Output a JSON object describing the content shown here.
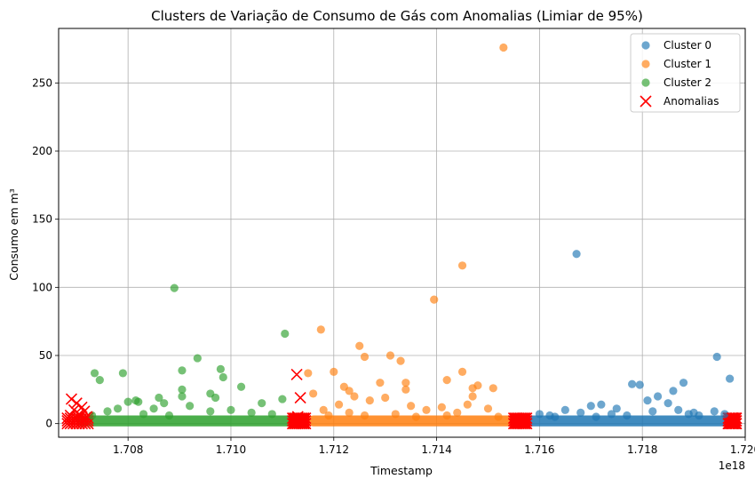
{
  "chart_data": {
    "type": "scatter",
    "title": "Clusters de Variação de Consumo de Gás com Anomalias (Limiar de 95%)",
    "xlabel": "Timestamp",
    "ylabel": "Consumo em m³",
    "x_offset_label": "1e18",
    "xlim": [
      1.70665,
      1.72
    ],
    "ylim": [
      -10,
      290
    ],
    "x_ticks": [
      1.708,
      1.71,
      1.712,
      1.714,
      1.716,
      1.718,
      1.72
    ],
    "x_tick_labels": [
      "1.708",
      "1.710",
      "1.712",
      "1.714",
      "1.716",
      "1.718",
      "1.720"
    ],
    "y_ticks": [
      0,
      50,
      100,
      150,
      200,
      250
    ],
    "y_tick_labels": [
      "0",
      "50",
      "100",
      "150",
      "200",
      "250"
    ],
    "grid": true,
    "legend_position": "top-right",
    "series": [
      {
        "name": "Cluster 0",
        "color": "#1f77b4",
        "marker": "circle",
        "band": [
          1.7157,
          1.7198
        ],
        "points": [
          [
            1.71672,
            124.5
          ],
          [
            1.71945,
            49
          ],
          [
            1.7197,
            33
          ],
          [
            1.71795,
            28.5
          ],
          [
            1.7178,
            29
          ],
          [
            1.7188,
            30
          ],
          [
            1.7186,
            24
          ],
          [
            1.7183,
            20
          ],
          [
            1.7181,
            17
          ],
          [
            1.7185,
            15
          ],
          [
            1.717,
            13
          ],
          [
            1.7172,
            14
          ],
          [
            1.7165,
            10
          ],
          [
            1.7175,
            11
          ],
          [
            1.719,
            8
          ],
          [
            1.7194,
            9
          ],
          [
            1.716,
            7
          ],
          [
            1.7162,
            6
          ],
          [
            1.7168,
            8
          ],
          [
            1.7174,
            7
          ],
          [
            1.7182,
            9
          ],
          [
            1.7187,
            10
          ],
          [
            1.7191,
            6
          ],
          [
            1.7196,
            7
          ],
          [
            1.7163,
            5
          ],
          [
            1.7171,
            5
          ],
          [
            1.7177,
            6
          ],
          [
            1.7189,
            7
          ]
        ]
      },
      {
        "name": "Cluster 1",
        "color": "#ff7f0e",
        "marker": "circle",
        "band": [
          1.7116,
          1.7157
        ],
        "points": [
          [
            1.7153,
            276
          ],
          [
            1.7145,
            116
          ],
          [
            1.71395,
            91
          ],
          [
            1.71175,
            69
          ],
          [
            1.7125,
            57
          ],
          [
            1.7131,
            50
          ],
          [
            1.7126,
            49
          ],
          [
            1.7133,
            46
          ],
          [
            1.712,
            38
          ],
          [
            1.7145,
            38
          ],
          [
            1.7115,
            37
          ],
          [
            1.7142,
            32
          ],
          [
            1.7134,
            30
          ],
          [
            1.7129,
            30
          ],
          [
            1.7122,
            27
          ],
          [
            1.7134,
            25
          ],
          [
            1.7147,
            26
          ],
          [
            1.7148,
            28
          ],
          [
            1.7123,
            24
          ],
          [
            1.7151,
            26
          ],
          [
            1.7116,
            22
          ],
          [
            1.7124,
            20
          ],
          [
            1.713,
            19
          ],
          [
            1.7147,
            20
          ],
          [
            1.7127,
            17
          ],
          [
            1.7121,
            14
          ],
          [
            1.7135,
            13
          ],
          [
            1.7141,
            12
          ],
          [
            1.7146,
            14
          ],
          [
            1.715,
            11
          ],
          [
            1.7118,
            10
          ],
          [
            1.7138,
            10
          ],
          [
            1.7123,
            8
          ],
          [
            1.7132,
            7
          ],
          [
            1.7144,
            8
          ],
          [
            1.7119,
            6
          ],
          [
            1.7126,
            6
          ],
          [
            1.7136,
            5
          ],
          [
            1.7142,
            6
          ],
          [
            1.7152,
            5
          ]
        ]
      },
      {
        "name": "Cluster 2",
        "color": "#2ca02c",
        "marker": "circle",
        "band": [
          1.7071,
          1.7113
        ],
        "points": [
          [
            1.7089,
            99.5
          ],
          [
            1.71105,
            66
          ],
          [
            1.70935,
            48
          ],
          [
            1.7098,
            40
          ],
          [
            1.70735,
            37
          ],
          [
            1.7079,
            37
          ],
          [
            1.70905,
            39
          ],
          [
            1.70985,
            34
          ],
          [
            1.70745,
            32
          ],
          [
            1.7102,
            27
          ],
          [
            1.70905,
            25
          ],
          [
            1.7096,
            22
          ],
          [
            1.70905,
            20
          ],
          [
            1.7086,
            19
          ],
          [
            1.711,
            18
          ],
          [
            1.7097,
            19
          ],
          [
            1.708,
            16
          ],
          [
            1.70815,
            17
          ],
          [
            1.7082,
            16
          ],
          [
            1.7087,
            15
          ],
          [
            1.7106,
            15
          ],
          [
            1.7092,
            13
          ],
          [
            1.7078,
            11
          ],
          [
            1.7085,
            11
          ],
          [
            1.71,
            10
          ],
          [
            1.7076,
            9
          ],
          [
            1.7096,
            9
          ],
          [
            1.7104,
            8
          ],
          [
            1.7083,
            7
          ],
          [
            1.7073,
            6
          ],
          [
            1.7088,
            6
          ],
          [
            1.7108,
            7
          ]
        ]
      },
      {
        "name": "Anomalias",
        "color": "#ff0000",
        "marker": "x",
        "band_segments": [
          [
            1.70682,
            1.70728
          ],
          [
            1.7112,
            1.71145
          ],
          [
            1.7155,
            1.71575
          ],
          [
            1.71967,
            1.71985
          ]
        ],
        "points": [
          [
            1.7069,
            18
          ],
          [
            1.707,
            15
          ],
          [
            1.7071,
            12
          ],
          [
            1.70695,
            10
          ],
          [
            1.70715,
            9
          ],
          [
            1.70705,
            7
          ],
          [
            1.70688,
            6
          ],
          [
            1.7072,
            5
          ],
          [
            1.707,
            4
          ],
          [
            1.71128,
            36
          ],
          [
            1.71135,
            19
          ],
          [
            1.7113,
            5
          ],
          [
            1.7156,
            3
          ],
          [
            1.7157,
            2
          ],
          [
            1.71975,
            4
          ],
          [
            1.7198,
            2
          ]
        ]
      }
    ]
  }
}
